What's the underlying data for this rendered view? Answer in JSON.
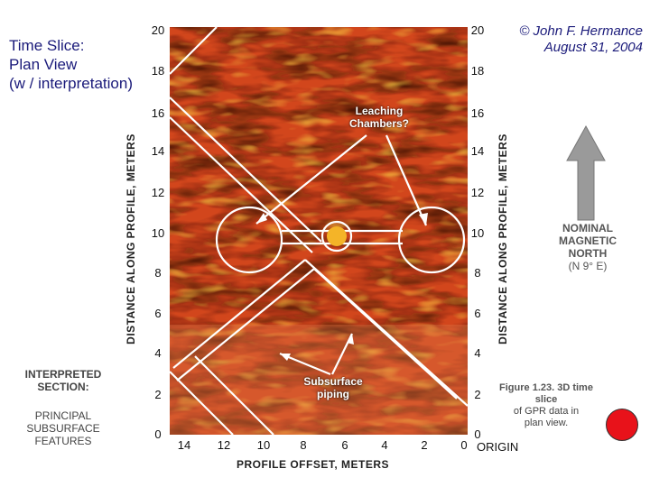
{
  "title": {
    "line1": "Time Slice:",
    "line2": "Plan View",
    "line3": "(w / interpretation)"
  },
  "copyright": {
    "line1": "© John F. Hermance",
    "line2": "August 31, 2004"
  },
  "y_axis": {
    "label": "DISTANCE ALONG PROFILE, METERS",
    "ticks": [
      "20",
      "18",
      "16",
      "14",
      "12",
      "10",
      "8",
      "6",
      "4",
      "2",
      "0"
    ]
  },
  "x_axis": {
    "label": "PROFILE OFFSET, METERS",
    "ticks": [
      "14",
      "12",
      "10",
      "8",
      "6",
      "4",
      "2",
      "0"
    ],
    "origin_label": "ORIGIN"
  },
  "callouts": {
    "leaching": {
      "line1": "Leaching",
      "line2": "Chambers?"
    },
    "piping": {
      "line1": "Subsurface",
      "line2": "piping"
    }
  },
  "compass": {
    "line1": "NOMINAL",
    "line2": "MAGNETIC",
    "line3": "NORTH",
    "line4": "(N 9° E)"
  },
  "legend": {
    "heading1": "INTERPRETED",
    "heading2": "SECTION:",
    "sub1": "PRINCIPAL",
    "sub2": "SUBSURFACE",
    "sub3": "FEATURES"
  },
  "caption": {
    "bold": "Figure 1.23. 3D time slice",
    "line2": "of GPR data in",
    "line3": "plan view."
  },
  "colors": {
    "accent_dot": "#e8121a",
    "text_blue": "#1a1a7a",
    "arrow_gray": "#9a9a9a"
  }
}
